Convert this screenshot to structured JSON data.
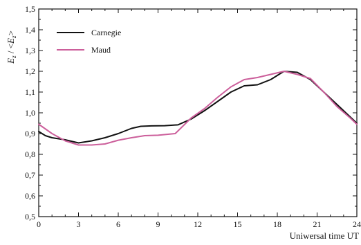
{
  "chart_data": {
    "type": "line",
    "title": "",
    "xlabel": "Uniwersal time UT",
    "ylabel": "E_z / <E_z>",
    "ylabel_parts": {
      "main": "E",
      "sub": "z",
      "sep": " / <",
      "main2": "E",
      "sub2": "z",
      "end": ">"
    },
    "xlim": [
      0,
      24
    ],
    "ylim": [
      0.5,
      1.5
    ],
    "xticks": [
      0,
      3,
      6,
      9,
      12,
      15,
      18,
      21,
      24
    ],
    "xtick_labels": [
      "0",
      "3",
      "6",
      "9",
      "12",
      "15",
      "18",
      "21",
      "24"
    ],
    "yticks": [
      0.5,
      0.6,
      0.7,
      0.8,
      0.9,
      1.0,
      1.1,
      1.2,
      1.3,
      1.4,
      1.5
    ],
    "ytick_labels": [
      "0,5",
      "0,6",
      "0,7",
      "0,8",
      "0,9",
      "1,0",
      "1,1",
      "1,2",
      "1,3",
      "1,4",
      "1,5"
    ],
    "grid": false,
    "legend": "top-left",
    "series": [
      {
        "name": "Carnegie",
        "color": "#111111",
        "x": [
          0,
          0.5,
          1,
          2,
          3,
          4,
          5,
          6,
          7,
          7.7,
          8.5,
          9.5,
          10.5,
          11.5,
          12.5,
          13.5,
          14.5,
          15.5,
          16.5,
          17.5,
          18.5,
          19.5,
          20.5,
          21.5,
          22.5,
          23.5,
          24
        ],
        "y": [
          0.91,
          0.89,
          0.88,
          0.87,
          0.855,
          0.865,
          0.88,
          0.9,
          0.925,
          0.935,
          0.937,
          0.938,
          0.942,
          0.97,
          1.01,
          1.055,
          1.1,
          1.13,
          1.135,
          1.16,
          1.2,
          1.195,
          1.16,
          1.1,
          1.04,
          0.98,
          0.95
        ]
      },
      {
        "name": "Maud",
        "color": "#cc5f9b",
        "x": [
          0,
          1,
          2,
          3,
          4,
          5,
          6,
          7,
          8,
          9,
          10.3,
          11.5,
          12.5,
          13.5,
          14.5,
          15.5,
          16.5,
          17.5,
          18.5,
          19.5,
          20.5,
          21.5,
          22.5,
          23.5,
          24
        ],
        "y": [
          0.945,
          0.9,
          0.865,
          0.845,
          0.845,
          0.85,
          0.868,
          0.88,
          0.89,
          0.892,
          0.9,
          0.975,
          1.02,
          1.075,
          1.125,
          1.16,
          1.17,
          1.185,
          1.2,
          1.185,
          1.165,
          1.1,
          1.03,
          0.975,
          0.945
        ]
      }
    ]
  }
}
